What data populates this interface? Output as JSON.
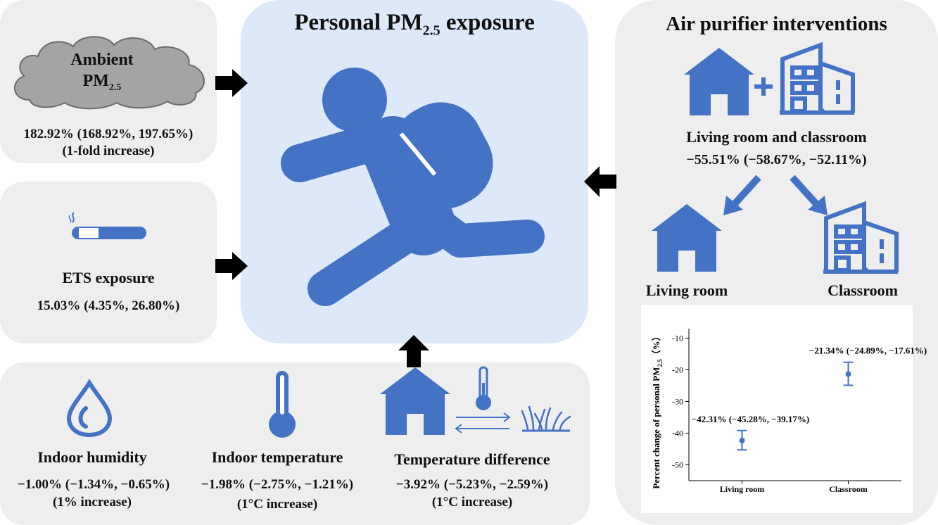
{
  "center": {
    "title": "Personal PM",
    "title_sub": "2.5",
    "title_rest": " exposure"
  },
  "ambient": {
    "label_line1": "Ambient",
    "label_line2": "PM",
    "label_sub": "2.5",
    "effect": "182.92% (168.92%, 197.65%)",
    "note": "(1-fold increase)"
  },
  "ets": {
    "label": "ETS exposure",
    "effect": "15.03% (4.35%, 26.80%)"
  },
  "humidity": {
    "label": "Indoor humidity",
    "effect": "−1.00% (−1.34%, −0.65%)",
    "note": "(1% increase)"
  },
  "temperature": {
    "label": "Indoor temperature",
    "effect": "−1.98% (−2.75%, −1.21%)",
    "note": "(1°C increase)"
  },
  "temp_diff": {
    "label": "Temperature difference",
    "effect": "−3.92% (−5.23%, −2.59%)",
    "note": "(1°C increase)"
  },
  "purifier": {
    "title": "Air purifier interventions",
    "combined_label": "Living room and classroom",
    "combined_effect": "−55.51% (−58.67%, −52.11%)",
    "living_room_label": "Living room",
    "classroom_label": "Classroom"
  },
  "icons": [
    "cloud-icon",
    "cigarette-icon",
    "person-running-icon",
    "house-icon",
    "building-icon",
    "water-drop-icon",
    "thermometer-icon",
    "grass-icon",
    "arrow-icon"
  ],
  "colors": {
    "icon_blue": "#4472c4",
    "panel_gray": "#efeeee",
    "center_blue": "#dde8f8"
  },
  "chart_data": {
    "type": "scatter",
    "categories": [
      "Living room",
      "Classroom"
    ],
    "values": [
      -42.31,
      -21.34
    ],
    "ci_low": [
      -45.28,
      -24.89
    ],
    "ci_high": [
      -39.17,
      -17.61
    ],
    "annotations": [
      "−42.31% (−45.28%, −39.17%)",
      "−21.34% (−24.89%, −17.61%)"
    ],
    "ylabel": "Percent change of personal PM",
    "ylabel_sub": "2.5",
    "ylabel_unit": "（%）",
    "ylim": [
      -55,
      -7
    ],
    "yticks": [
      -10,
      -20,
      -30,
      -40,
      -50
    ],
    "ytick_labels": [
      "-10",
      "-20",
      "-30",
      "-40",
      "-50"
    ],
    "grid": false
  }
}
